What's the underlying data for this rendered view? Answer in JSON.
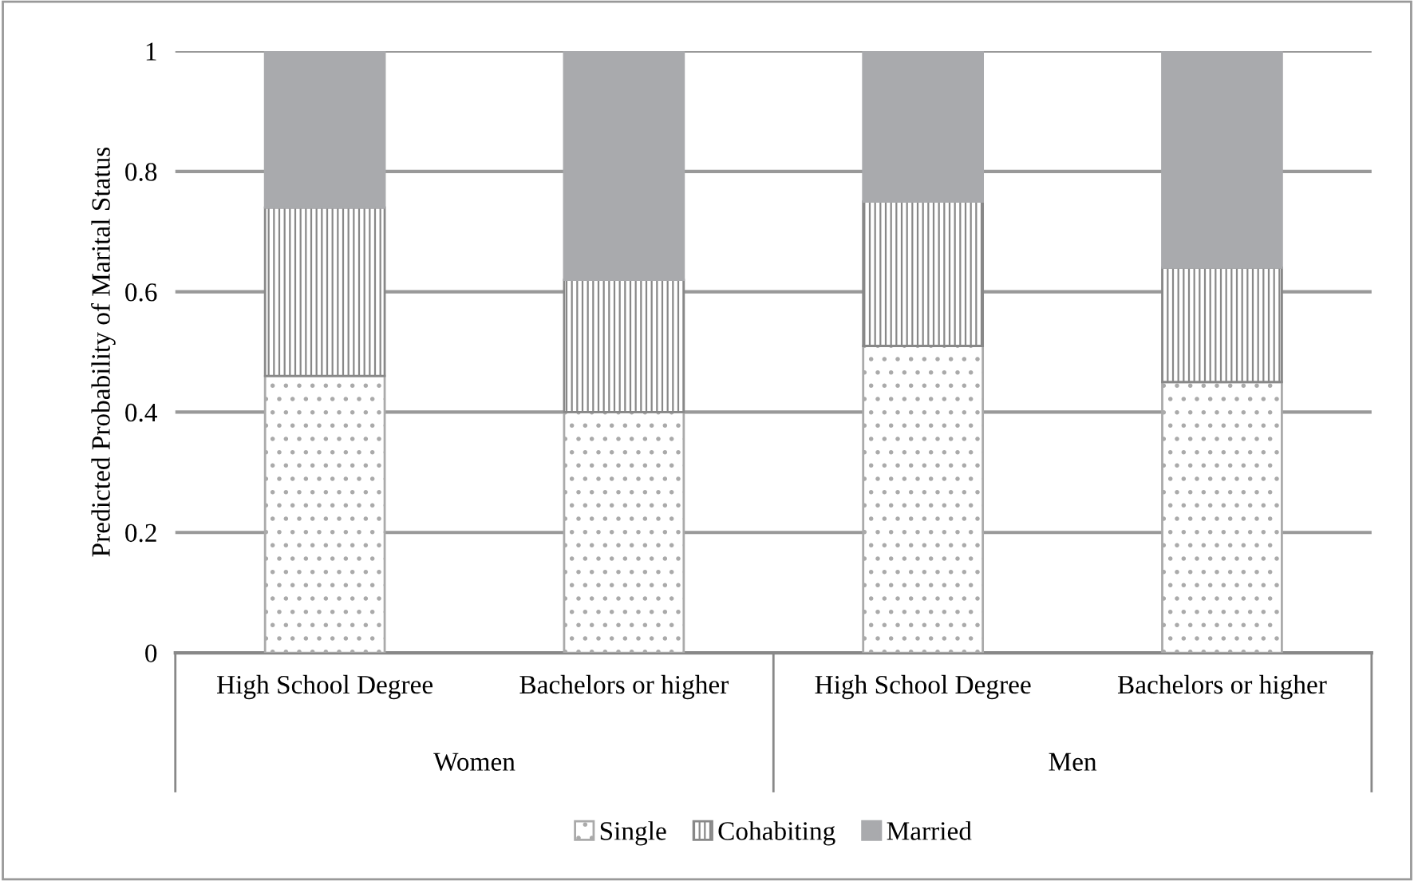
{
  "chart_data": {
    "type": "bar",
    "stacked": true,
    "ylabel": "Predicted Probability of Marital Status",
    "categories": [
      "High School Degree",
      "Bachelors or higher",
      "High School Degree",
      "Bachelors or higher"
    ],
    "series": [
      {
        "name": "Single",
        "color": "#aaaaaa",
        "values": [
          0.46,
          0.4,
          0.51,
          0.45
        ]
      },
      {
        "name": "Cohabiting",
        "color": "#888888",
        "values": [
          0.28,
          0.22,
          0.24,
          0.19
        ]
      },
      {
        "name": "Married",
        "color": "#a9aaad",
        "values": [
          0.26,
          0.38,
          0.25,
          0.36
        ]
      }
    ],
    "annotations": [
      "Women",
      "Men"
    ],
    "ylim": [
      0,
      1
    ],
    "yticks": [
      0,
      0.2,
      0.4,
      0.6,
      0.8,
      1
    ],
    "grid": "y",
    "legend": "bottom"
  }
}
